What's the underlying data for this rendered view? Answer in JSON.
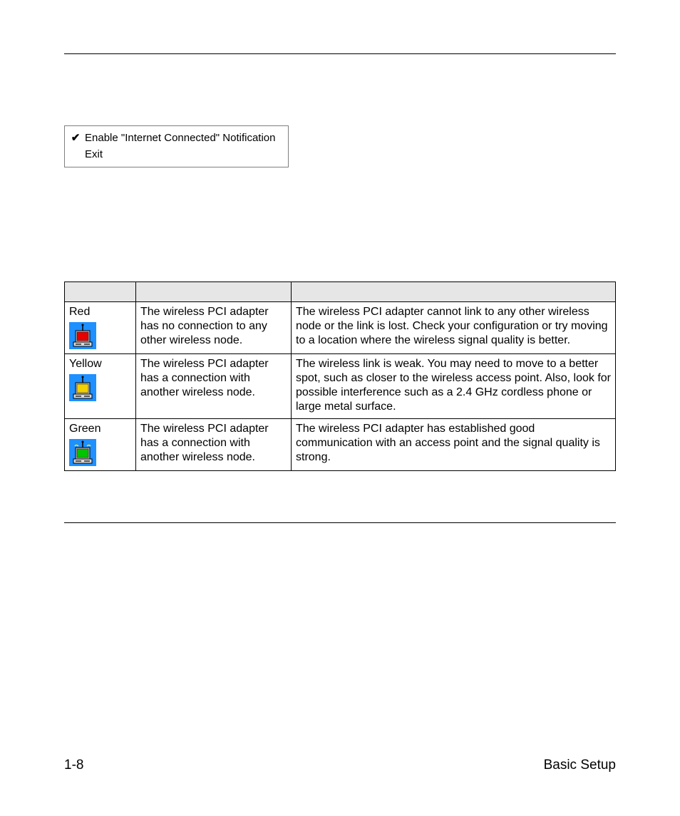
{
  "menu": {
    "items": [
      {
        "checked": true,
        "label": "Enable \"Internet Connected\" Notification"
      },
      {
        "checked": false,
        "label": "Exit"
      }
    ]
  },
  "table": {
    "header_bg": "#e6e6e6",
    "columns": [
      "",
      "",
      ""
    ],
    "rows": [
      {
        "color_label": "Red",
        "icon": {
          "bg": "#1e90ff",
          "screen": "#e60000",
          "signal": false
        },
        "condition": "The wireless PCI adapter has no connection to any other wireless node.",
        "description": "The wireless PCI adapter cannot link to any other wireless node or the link is lost. Check your configuration or try moving to a location where the wireless signal quality is better."
      },
      {
        "color_label": "Yellow",
        "icon": {
          "bg": "#1e90ff",
          "screen": "#f2d200",
          "signal": false
        },
        "condition": "The wireless PCI adapter has a connection with another wireless node.",
        "description": "The wireless link is weak. You may need to move to a better spot, such as closer to the wireless access point. Also, look for possible interference such as a 2.4 GHz cordless phone or large metal surface."
      },
      {
        "color_label": "Green",
        "icon": {
          "bg": "#1e90ff",
          "screen": "#00c400",
          "signal": true
        },
        "condition": "The wireless PCI adapter has a connection with another wireless node.",
        "description": "The wireless PCI adapter has established good communication with an access point and the signal quality is strong."
      }
    ]
  },
  "footer": {
    "left": "1-8",
    "right": "Basic Setup"
  }
}
